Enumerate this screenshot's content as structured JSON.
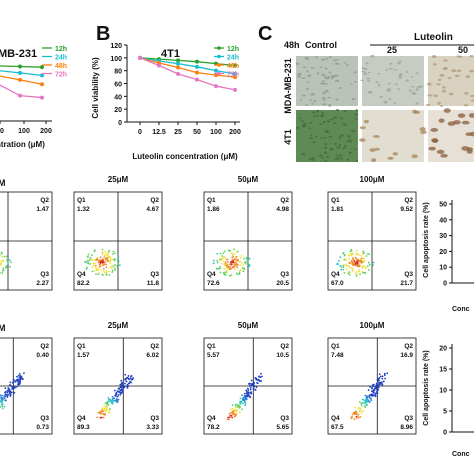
{
  "panels": {
    "b": "B",
    "c": "C"
  },
  "panel_a_top": {
    "title": "MB-231",
    "xlabel": "ntration (μM)",
    "ticks": [
      "50",
      "100",
      "200"
    ]
  },
  "panel_b": {
    "title": "4T1"
  },
  "panel_c": {
    "time_label": "48h",
    "col_control": "Control",
    "drug_label": "Luteolin",
    "col_25": "25",
    "col_50": "50",
    "row_mda": "MDA-MB-231",
    "row_4t1": "4T1"
  },
  "flow": {
    "row1": [
      {
        "conc": "",
        "q1": "",
        "q2": "1.47",
        "q3": "2.27",
        "q4": "",
        "q4_label": "",
        "q1_label": "",
        "q2_label": "Q2",
        "q3_label": "Q3"
      },
      {
        "conc": "25μM",
        "q1": "1.32",
        "q2": "4.67",
        "q3": "11.8",
        "q4": "82.2",
        "q4_label": "Q4",
        "q1_label": "Q1",
        "q2_label": "Q2",
        "q3_label": "Q3"
      },
      {
        "conc": "50μM",
        "q1": "1.86",
        "q2": "4.98",
        "q3": "20.5",
        "q4": "72.6",
        "q4_label": "Q4",
        "q1_label": "Q1",
        "q2_label": "Q2",
        "q3_label": "Q3"
      },
      {
        "conc": "100μM",
        "q1": "1.81",
        "q2": "9.52",
        "q3": "21.7",
        "q4": "67.0",
        "q4_label": "Q4",
        "q1_label": "Q1",
        "q2_label": "Q2",
        "q3_label": "Q3"
      }
    ],
    "row2": [
      {
        "conc": "",
        "q1": "",
        "q2": "0.40",
        "q3": "0.73",
        "q4": "",
        "q4_label": "",
        "q1_label": "",
        "q2_label": "Q2",
        "q3_label": "Q3"
      },
      {
        "conc": "25μM",
        "q1": "1.57",
        "q2": "6.02",
        "q3": "3.33",
        "q4": "89.3",
        "q4_label": "Q4",
        "q1_label": "Q1",
        "q2_label": "Q2",
        "q3_label": "Q3"
      },
      {
        "conc": "50μM",
        "q1": "5.57",
        "q2": "10.5",
        "q3": "5.65",
        "q4": "78.2",
        "q4_label": "Q4",
        "q1_label": "Q1",
        "q2_label": "Q2",
        "q3_label": "Q3"
      },
      {
        "conc": "100μM",
        "q1": "7.48",
        "q2": "16.9",
        "q3": "8.96",
        "q4": "67.5",
        "q4_label": "Q4",
        "q1_label": "Q1",
        "q2_label": "Q2",
        "q3_label": "Q3"
      }
    ],
    "partial_m": "M"
  },
  "bar_panels": {
    "ylabel": "Cell apoptosis rate (%)",
    "top_ticks": [
      "0",
      "10",
      "20",
      "30",
      "40",
      "50"
    ],
    "bottom_ticks": [
      "0",
      "5",
      "10",
      "15",
      "20"
    ],
    "xlabel_partial": "Conc"
  },
  "colors": {
    "series_12h": "#2ca02c",
    "series_24h": "#17becf",
    "series_48h": "#ff7f0e",
    "series_72h": "#e377c2"
  },
  "chart_data": [
    {
      "type": "line",
      "title": "4T1",
      "xlabel": "Luteolin concentration (μM)",
      "ylabel": "Cell viability (%)",
      "categories": [
        "0",
        "12.5",
        "25",
        "50",
        "100",
        "200"
      ],
      "ylim": [
        0,
        120
      ],
      "yticks": [
        "0",
        "20",
        "40",
        "60",
        "80",
        "100",
        "120"
      ],
      "legend": "top-right",
      "series": [
        {
          "name": "12h",
          "values": [
            100,
            98,
            96,
            94,
            91,
            88
          ]
        },
        {
          "name": "24h",
          "values": [
            100,
            95,
            91,
            86,
            80,
            75
          ]
        },
        {
          "name": "48h",
          "values": [
            100,
            92,
            85,
            77,
            73,
            70
          ]
        },
        {
          "name": "72h",
          "values": [
            100,
            88,
            75,
            66,
            56,
            50
          ]
        }
      ]
    },
    {
      "type": "line",
      "title": "MB-231",
      "xlabel": "ntration (μM)",
      "categories": [
        "50",
        "100",
        "200"
      ],
      "legend": "top-right",
      "series": [
        {
          "name": "12h",
          "values": [
            87,
            86,
            85
          ]
        },
        {
          "name": "24h",
          "values": [
            80,
            76,
            72
          ]
        },
        {
          "name": "48h",
          "values": [
            72,
            65,
            58
          ]
        },
        {
          "name": "72h",
          "values": [
            60,
            40,
            37
          ]
        }
      ]
    }
  ]
}
